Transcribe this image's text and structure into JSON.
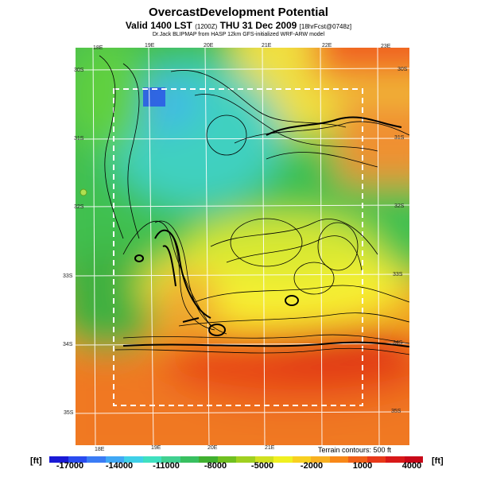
{
  "header": {
    "title": "OvercastDevelopment Potential",
    "valid_main": "Valid 1400 LST",
    "valid_small": "(1200Z)",
    "valid_date": "THU 31 Dec 2009",
    "valid_run": "[18hrFcst@0748z]",
    "subtitle": "Dr.Jack BLIPMAP from HASP 12km GFS-initialized WRF-ARW model"
  },
  "map": {
    "lon_ticks_top": [
      "18E",
      "19E",
      "20E",
      "21E",
      "22E",
      "23E"
    ],
    "lon_ticks_bottom": [
      "18E",
      "19E",
      "20E",
      "21E"
    ],
    "lat_ticks_left": [
      "30S",
      "31S",
      "32S",
      "33S",
      "34S",
      "35S"
    ],
    "lat_ticks_right": [
      "30S",
      "31S",
      "32S",
      "33S",
      "34S",
      "35S"
    ],
    "contour_note": "Terrain contours: 500 ft"
  },
  "colorbar": {
    "unit_left": "[ft]",
    "unit_right": "[ft]",
    "labels": [
      "-17000",
      "-14000",
      "-11000",
      "-8000",
      "-5000",
      "-2000",
      "1000",
      "4000"
    ],
    "colors": [
      "#1a1ad6",
      "#2a4cf0",
      "#3a7cf5",
      "#40a8f5",
      "#3fd0e8",
      "#3fe0c0",
      "#40d090",
      "#38c060",
      "#40b030",
      "#70c020",
      "#a0d020",
      "#d0e020",
      "#f0f020",
      "#f8d020",
      "#f8b020",
      "#f88818",
      "#f06018",
      "#e83818",
      "#d81818",
      "#c80818"
    ]
  }
}
